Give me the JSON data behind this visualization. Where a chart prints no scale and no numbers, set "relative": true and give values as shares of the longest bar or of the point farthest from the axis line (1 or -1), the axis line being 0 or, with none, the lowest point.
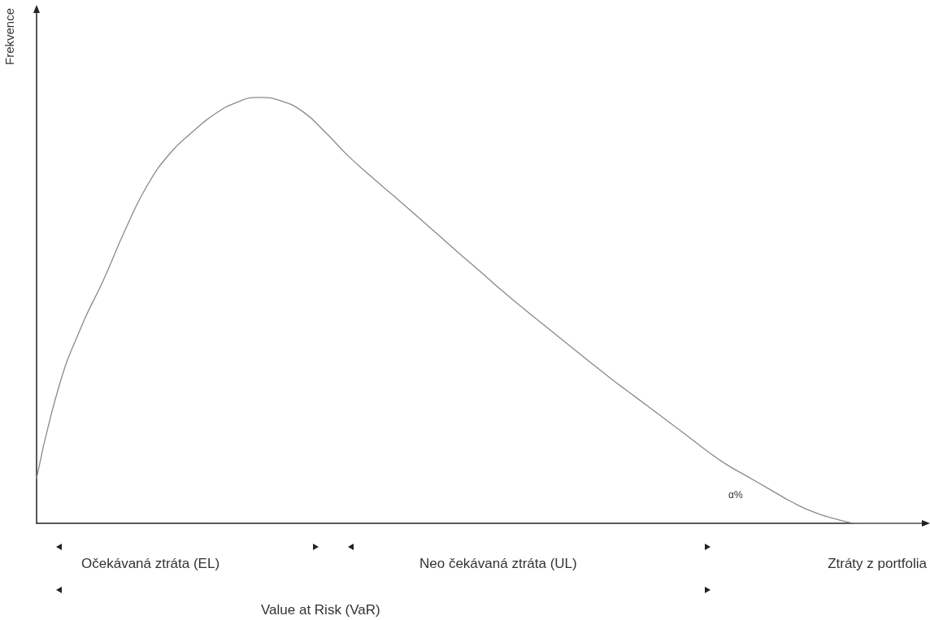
{
  "chart_data": {
    "type": "line",
    "relative": true,
    "ylabel": "Frekvence",
    "xlabel": "Ztráty z portfolia",
    "categories": [
      null,
      null,
      null,
      null,
      null,
      null,
      null,
      null,
      null,
      null,
      null,
      null,
      null,
      null,
      null,
      null,
      null,
      null,
      null,
      null,
      null,
      null,
      null,
      null,
      null,
      null,
      null,
      null,
      null,
      null,
      null,
      null,
      null,
      null,
      null,
      null,
      null,
      null,
      null,
      null,
      null
    ],
    "series": [
      {
        "color": "#8a8a8a",
        "values": [
          0.105,
          0.32,
          0.46,
          0.57,
          0.69,
          0.795,
          0.868,
          0.918,
          0.96,
          0.988,
          1,
          0.992,
          0.966,
          0.918,
          0.864,
          0.817,
          0.772,
          0.727,
          0.681,
          0.635,
          0.59,
          0.544,
          0.501,
          0.459,
          0.417,
          0.375,
          0.334,
          0.295,
          0.256,
          0.217,
          0.177,
          0.14,
          0.11,
          0.08,
          0.05,
          0.026,
          0.01,
          0,
          0,
          0,
          0
        ]
      }
    ],
    "annotations": [
      "Očekávaná ztráta (EL)",
      "Neo čekávaná ztráta (UL)",
      "Value at Risk (VaR)",
      "α%"
    ],
    "grid": false,
    "marker": "none",
    "line_style": "solid"
  }
}
